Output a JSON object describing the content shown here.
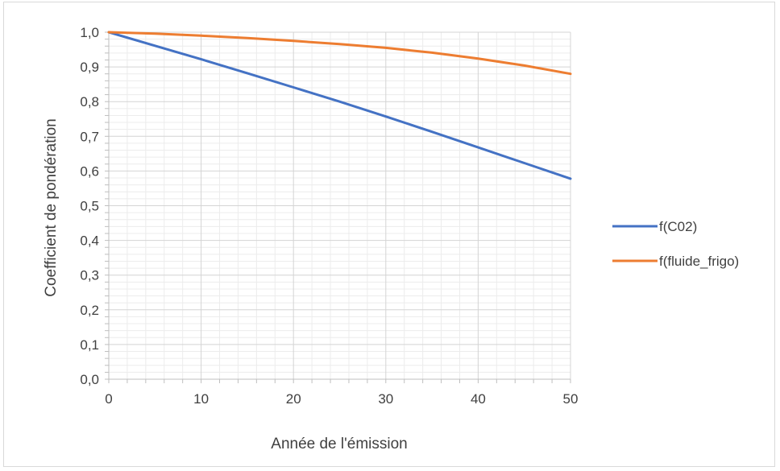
{
  "chart_data": {
    "type": "line",
    "title": "",
    "xlabel": "Année de l'émission",
    "ylabel": "Coefficient de pondération",
    "xlim": [
      0,
      50
    ],
    "ylim": [
      0,
      1
    ],
    "x_ticks": [
      0,
      10,
      20,
      30,
      40,
      50
    ],
    "x_tick_labels": [
      "0",
      "10",
      "20",
      "30",
      "40",
      "50"
    ],
    "y_ticks": [
      0,
      0.1,
      0.2,
      0.3,
      0.4,
      0.5,
      0.6,
      0.7,
      0.8,
      0.9,
      1.0
    ],
    "y_tick_labels": [
      "0,0",
      "0,1",
      "0,2",
      "0,3",
      "0,4",
      "0,5",
      "0,6",
      "0,7",
      "0,8",
      "0,9",
      "1,0"
    ],
    "grid": "major and minor",
    "legend_position": "right",
    "series": [
      {
        "name": "f(C02)",
        "color": "#4472c4",
        "x": [
          0,
          5,
          10,
          15,
          20,
          25,
          30,
          35,
          40,
          45,
          50
        ],
        "values": [
          1.0,
          0.961,
          0.922,
          0.882,
          0.841,
          0.8,
          0.757,
          0.713,
          0.668,
          0.623,
          0.578
        ]
      },
      {
        "name": "f(fluide_frigo)",
        "color": "#ed7d31",
        "x": [
          0,
          5,
          10,
          15,
          20,
          25,
          30,
          35,
          40,
          45,
          50
        ],
        "values": [
          1.0,
          0.996,
          0.99,
          0.983,
          0.975,
          0.966,
          0.955,
          0.941,
          0.924,
          0.904,
          0.88
        ]
      }
    ]
  }
}
